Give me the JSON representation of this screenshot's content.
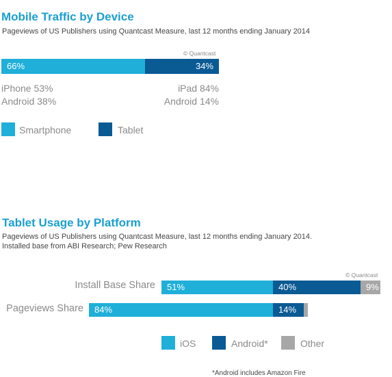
{
  "colors": {
    "smartphone": "#1fafd8",
    "tablet": "#0a5a94",
    "ios": "#1fafd8",
    "android": "#0a5a94",
    "other": "#a7a7a7",
    "title": "#1a9fd0"
  },
  "chart_data": [
    {
      "type": "bar",
      "orientation": "horizontal-stacked",
      "title": "Mobile Traffic by Device",
      "subtitle": "Pageviews of US Publishers using Quantcast Measure, last 12 months ending January 2014",
      "credit": "© Quantcast",
      "series": [
        {
          "name": "Smartphone",
          "values": [
            66
          ],
          "label": "66%"
        },
        {
          "name": "Tablet",
          "values": [
            34
          ],
          "label": "34%"
        }
      ],
      "breakdown": {
        "smartphone": [
          "iPhone 53%",
          "Android 38%"
        ],
        "tablet": [
          "iPad 84%",
          "Android 14%"
        ]
      },
      "legend": [
        "Smartphone",
        "Tablet"
      ],
      "legend_placement": "bottom-left"
    },
    {
      "type": "bar",
      "orientation": "horizontal-stacked",
      "title": "Tablet Usage by Platform",
      "subtitle_lines": [
        "Pageviews of US Publishers using Quantcast Measure, last 12 months ending January 2014.",
        "Installed base from ABI Research; Pew Research"
      ],
      "credit": "© Quantcast",
      "categories": [
        "Install Base Share",
        "Pageviews Share"
      ],
      "series": [
        {
          "name": "iOS",
          "values": [
            51,
            84
          ],
          "labels": [
            "51%",
            "84%"
          ]
        },
        {
          "name": "Android*",
          "values": [
            40,
            14
          ],
          "labels": [
            "40%",
            "14%"
          ]
        },
        {
          "name": "Other",
          "values": [
            9,
            2
          ],
          "labels": [
            "9%",
            ""
          ]
        }
      ],
      "legend": [
        "iOS",
        "Android*",
        "Other"
      ],
      "legend_placement": "bottom-center",
      "footnote": "*Android includes Amazon Fire"
    }
  ]
}
